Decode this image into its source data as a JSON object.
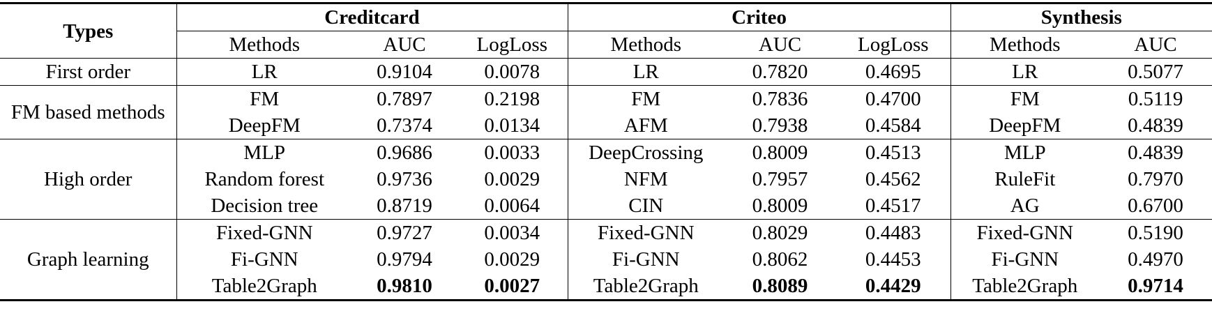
{
  "header": {
    "types": "Types",
    "datasets": [
      "Creditcard",
      "Criteo",
      "Synthesis"
    ],
    "columns": [
      "Methods",
      "AUC",
      "LogLoss",
      "Methods",
      "AUC",
      "LogLoss",
      "Methods",
      "AUC"
    ]
  },
  "groups": [
    {
      "type": "First order",
      "rows": [
        [
          "LR",
          "0.9104",
          "0.0078",
          "LR",
          "0.7820",
          "0.4695",
          "LR",
          "0.5077"
        ]
      ]
    },
    {
      "type": "FM based methods",
      "rows": [
        [
          "FM",
          "0.7897",
          "0.2198",
          "FM",
          "0.7836",
          "0.4700",
          "FM",
          "0.5119"
        ],
        [
          "DeepFM",
          "0.7374",
          "0.0134",
          "AFM",
          "0.7938",
          "0.4584",
          "DeepFM",
          "0.4839"
        ]
      ]
    },
    {
      "type": "High order",
      "rows": [
        [
          "MLP",
          "0.9686",
          "0.0033",
          "DeepCrossing",
          "0.8009",
          "0.4513",
          "MLP",
          "0.4839"
        ],
        [
          "Random forest",
          "0.9736",
          "0.0029",
          "NFM",
          "0.7957",
          "0.4562",
          "RuleFit",
          "0.7970"
        ],
        [
          "Decision tree",
          "0.8719",
          "0.0064",
          "CIN",
          "0.8009",
          "0.4517",
          "AG",
          "0.6700"
        ]
      ]
    },
    {
      "type": "Graph learning",
      "rows": [
        [
          "Fixed-GNN",
          "0.9727",
          "0.0034",
          "Fixed-GNN",
          "0.8029",
          "0.4483",
          "Fixed-GNN",
          "0.5190"
        ],
        [
          "Fi-GNN",
          "0.9794",
          "0.0029",
          "Fi-GNN",
          "0.8062",
          "0.4453",
          "Fi-GNN",
          "0.4970"
        ],
        [
          "Table2Graph",
          "0.9810",
          "0.0027",
          "Table2Graph",
          "0.8089",
          "0.4429",
          "Table2Graph",
          "0.9714"
        ]
      ]
    }
  ]
}
